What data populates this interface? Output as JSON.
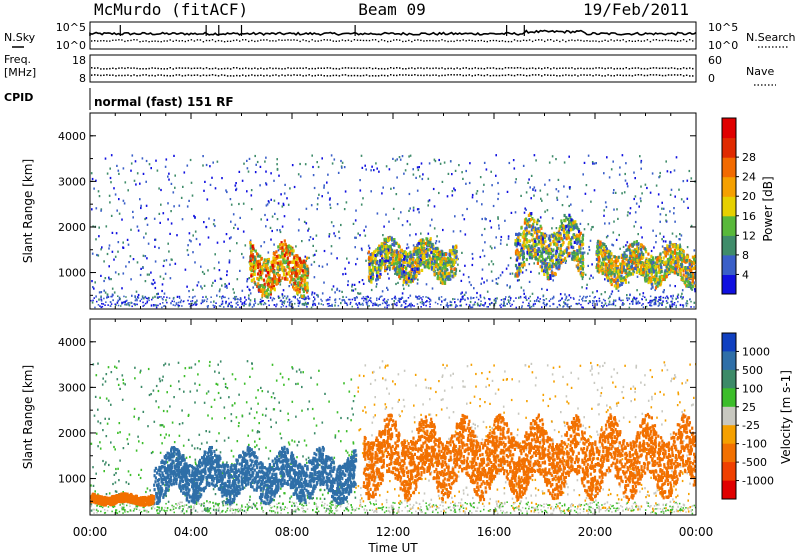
{
  "header": {
    "station": "McMurdo (fitACF)",
    "beam": "Beam 09",
    "date": "19/Feb/2011"
  },
  "top_panel": {
    "left_label": "N.Sky",
    "right_label": "N.Search",
    "left_ticks": [
      "10^5",
      "10^0"
    ],
    "right_ticks": [
      "10^5",
      "10^0"
    ]
  },
  "freq_panel": {
    "left_label_1": "Freq.",
    "left_label_2": "[MHz]",
    "right_label": "Nave",
    "left_ticks": [
      "18",
      "8"
    ],
    "right_ticks": [
      "60",
      "0"
    ]
  },
  "cpid": {
    "label": "CPID",
    "text": "normal (fast) 151 RF"
  },
  "x_axis": {
    "label": "Time UT",
    "ticks": [
      "00:00",
      "04:00",
      "08:00",
      "12:00",
      "16:00",
      "20:00",
      "00:00"
    ]
  },
  "chart_data": [
    {
      "type": "heatmap",
      "name": "power",
      "ylabel": "Slant Range [km]",
      "ylim": [
        200,
        4500
      ],
      "yticks": [
        1000,
        2000,
        3000,
        4000
      ],
      "xlim_hours": [
        0,
        24
      ],
      "colorbar_label": "Power [dB]",
      "colorbar_ticks": [
        4,
        8,
        12,
        16,
        20,
        24,
        28
      ],
      "colorbar_colors": [
        "#1010e0",
        "#3a5fc8",
        "#3f8c6a",
        "#58b83a",
        "#e6d000",
        "#f5a000",
        "#f26a00",
        "#e02a00",
        "#e00000"
      ],
      "features": [
        {
          "t0": 6.3,
          "t1": 8.6,
          "r0": 500,
          "r1": 1700,
          "value": 28
        },
        {
          "t0": 11.0,
          "t1": 14.5,
          "r0": 800,
          "r1": 1800,
          "value": 22
        },
        {
          "t0": 16.8,
          "t1": 19.5,
          "r0": 900,
          "r1": 2300,
          "value": 22
        },
        {
          "t0": 20.0,
          "t1": 24.0,
          "r0": 700,
          "r1": 1700,
          "value": 24
        }
      ]
    },
    {
      "type": "heatmap",
      "name": "velocity",
      "ylabel": "Slant Range [km]",
      "ylim": [
        200,
        4500
      ],
      "yticks": [
        1000,
        2000,
        3000,
        4000
      ],
      "xlim_hours": [
        0,
        24
      ],
      "colorbar_label": "Velocity [m s-1]",
      "colorbar_ticks": [
        "1000",
        "500",
        "100",
        "25",
        "-25",
        "-100",
        "-500",
        "-1000"
      ],
      "colorbar_colors": [
        "#1040c0",
        "#2f6fa8",
        "#3c8a68",
        "#3cbd2a",
        "#c8c8c0",
        "#f5a000",
        "#f27000",
        "#f04000",
        "#e00000"
      ],
      "features": [
        {
          "t0": 2.5,
          "t1": 10.5,
          "r0": 500,
          "r1": 1700,
          "value": 300
        },
        {
          "t0": 10.8,
          "t1": 24.0,
          "r0": 600,
          "r1": 2400,
          "value": -300
        },
        {
          "t0": 0.0,
          "t1": 2.5,
          "r0": 450,
          "r1": 700,
          "value": -300
        }
      ]
    }
  ]
}
